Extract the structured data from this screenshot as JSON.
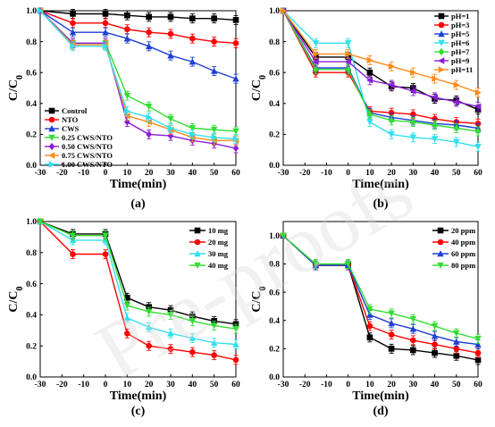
{
  "watermark": "Pre-proofs",
  "chart_data": [
    {
      "type": "line",
      "panel_label": "(a)",
      "xlabel": "Time(min)",
      "ylabel": "C/C0",
      "xlim": [
        -30,
        60
      ],
      "ylim": [
        0.0,
        1.0
      ],
      "xticks": [
        -30,
        -20,
        -10,
        0,
        10,
        20,
        30,
        40,
        50,
        60
      ],
      "yticks": [
        0.0,
        0.2,
        0.4,
        0.6,
        0.8,
        1.0
      ],
      "legend_position": "bottom-left",
      "x": [
        -30,
        -15,
        0,
        10,
        20,
        30,
        40,
        50,
        60
      ],
      "series": [
        {
          "name": "Control",
          "color": "#000000",
          "marker": "square",
          "values": [
            1.0,
            0.98,
            0.98,
            0.97,
            0.96,
            0.96,
            0.95,
            0.95,
            0.94
          ]
        },
        {
          "name": "NTO",
          "color": "#ff0000",
          "marker": "circle",
          "values": [
            1.0,
            0.92,
            0.92,
            0.88,
            0.86,
            0.85,
            0.82,
            0.8,
            0.79
          ]
        },
        {
          "name": "CWS",
          "color": "#1f3fd6",
          "marker": "triangle",
          "values": [
            1.0,
            0.86,
            0.86,
            0.82,
            0.77,
            0.71,
            0.67,
            0.61,
            0.56
          ]
        },
        {
          "name": "0.25 CWS/NTO",
          "color": "#33dd33",
          "marker": "triangle-down",
          "values": [
            1.0,
            0.79,
            0.79,
            0.45,
            0.38,
            0.3,
            0.24,
            0.23,
            0.22
          ]
        },
        {
          "name": "0.50 CWS/NTO",
          "color": "#8a1ddb",
          "marker": "diamond",
          "values": [
            1.0,
            0.79,
            0.79,
            0.28,
            0.2,
            0.19,
            0.16,
            0.14,
            0.11
          ]
        },
        {
          "name": "0.75 CWS/NTO",
          "color": "#ff8c1a",
          "marker": "triangle-left",
          "values": [
            1.0,
            0.78,
            0.78,
            0.32,
            0.28,
            0.23,
            0.18,
            0.16,
            0.16
          ]
        },
        {
          "name": "1.00 CWS/NTO",
          "color": "#33e0ee",
          "marker": "triangle-right",
          "values": [
            1.0,
            0.77,
            0.77,
            0.35,
            0.31,
            0.24,
            0.2,
            0.18,
            0.17
          ]
        }
      ]
    },
    {
      "type": "line",
      "panel_label": "(b)",
      "xlabel": "Time(min)",
      "ylabel": "C/C0",
      "xlim": [
        -30,
        60
      ],
      "ylim": [
        0.0,
        1.0
      ],
      "xticks": [
        -30,
        -20,
        -10,
        0,
        10,
        20,
        30,
        40,
        50,
        60
      ],
      "yticks": [
        0.0,
        0.2,
        0.4,
        0.6,
        0.8,
        1.0
      ],
      "legend_position": "top-right",
      "x": [
        -30,
        -15,
        0,
        10,
        20,
        30,
        40,
        50,
        60
      ],
      "series": [
        {
          "name": "pH=1",
          "color": "#000000",
          "marker": "square",
          "values": [
            1.0,
            0.7,
            0.7,
            0.6,
            0.51,
            0.5,
            0.43,
            0.42,
            0.36
          ]
        },
        {
          "name": "pH=3",
          "color": "#ff0000",
          "marker": "circle",
          "values": [
            1.0,
            0.6,
            0.6,
            0.35,
            0.34,
            0.33,
            0.3,
            0.28,
            0.27
          ]
        },
        {
          "name": "pH=5",
          "color": "#1f3fd6",
          "marker": "triangle",
          "values": [
            1.0,
            0.63,
            0.63,
            0.34,
            0.31,
            0.29,
            0.27,
            0.26,
            0.24
          ]
        },
        {
          "name": "pH=6",
          "color": "#33e0ee",
          "marker": "triangle-down",
          "values": [
            1.0,
            0.79,
            0.79,
            0.28,
            0.2,
            0.18,
            0.17,
            0.15,
            0.12
          ]
        },
        {
          "name": "pH=7",
          "color": "#33dd33",
          "marker": "diamond",
          "values": [
            1.0,
            0.62,
            0.62,
            0.33,
            0.29,
            0.28,
            0.26,
            0.24,
            0.22
          ]
        },
        {
          "name": "pH=9",
          "color": "#8a1ddb",
          "marker": "triangle-left",
          "values": [
            1.0,
            0.67,
            0.67,
            0.55,
            0.52,
            0.48,
            0.44,
            0.41,
            0.38
          ]
        },
        {
          "name": "pH=11",
          "color": "#ff8c1a",
          "marker": "triangle-right",
          "values": [
            1.0,
            0.72,
            0.72,
            0.68,
            0.64,
            0.6,
            0.56,
            0.52,
            0.47
          ]
        }
      ]
    },
    {
      "type": "line",
      "panel_label": "(c)",
      "xlabel": "Time(min)",
      "ylabel": "C/C0",
      "xlim": [
        -30,
        60
      ],
      "ylim": [
        0.0,
        1.0
      ],
      "xticks": [
        -30,
        -20,
        -10,
        0,
        10,
        20,
        30,
        40,
        50,
        60
      ],
      "yticks": [
        0.0,
        0.2,
        0.4,
        0.6,
        0.8,
        1.0
      ],
      "legend_position": "top-right",
      "x": [
        -30,
        -15,
        0,
        10,
        20,
        30,
        40,
        50,
        60
      ],
      "series": [
        {
          "name": "10 mg",
          "color": "#000000",
          "marker": "square",
          "values": [
            1.0,
            0.92,
            0.92,
            0.51,
            0.45,
            0.43,
            0.39,
            0.36,
            0.34
          ]
        },
        {
          "name": "20 mg",
          "color": "#ff0000",
          "marker": "circle",
          "values": [
            1.0,
            0.79,
            0.79,
            0.28,
            0.2,
            0.18,
            0.16,
            0.14,
            0.11
          ]
        },
        {
          "name": "30 mg",
          "color": "#33e0ee",
          "marker": "triangle",
          "values": [
            1.0,
            0.88,
            0.88,
            0.38,
            0.32,
            0.28,
            0.25,
            0.22,
            0.21
          ]
        },
        {
          "name": "40 mg",
          "color": "#33dd33",
          "marker": "triangle-down",
          "values": [
            1.0,
            0.91,
            0.91,
            0.46,
            0.42,
            0.4,
            0.36,
            0.33,
            0.31
          ]
        }
      ]
    },
    {
      "type": "line",
      "panel_label": "(d)",
      "xlabel": "Time(min)",
      "ylabel": "C/C0",
      "xlim": [
        -30,
        60
      ],
      "ylim": [
        0.0,
        1.1
      ],
      "xticks": [
        -30,
        -20,
        -10,
        0,
        10,
        20,
        30,
        40,
        50,
        60
      ],
      "yticks": [
        0.0,
        0.2,
        0.4,
        0.6,
        0.8,
        1.0
      ],
      "legend_position": "top-right",
      "x": [
        -30,
        -15,
        0,
        10,
        20,
        30,
        40,
        50,
        60
      ],
      "series": [
        {
          "name": "20 ppm",
          "color": "#000000",
          "marker": "square",
          "values": [
            1.0,
            0.79,
            0.79,
            0.28,
            0.2,
            0.19,
            0.17,
            0.15,
            0.12
          ]
        },
        {
          "name": "40 ppm",
          "color": "#ff0000",
          "marker": "circle",
          "values": [
            1.0,
            0.79,
            0.79,
            0.36,
            0.3,
            0.26,
            0.23,
            0.2,
            0.17
          ]
        },
        {
          "name": "60 ppm",
          "color": "#1f3fd6",
          "marker": "triangle",
          "values": [
            1.0,
            0.79,
            0.79,
            0.44,
            0.38,
            0.34,
            0.29,
            0.25,
            0.23
          ]
        },
        {
          "name": "80 ppm",
          "color": "#33dd33",
          "marker": "triangle-down",
          "values": [
            1.0,
            0.8,
            0.8,
            0.48,
            0.45,
            0.41,
            0.36,
            0.31,
            0.27
          ]
        }
      ]
    }
  ]
}
